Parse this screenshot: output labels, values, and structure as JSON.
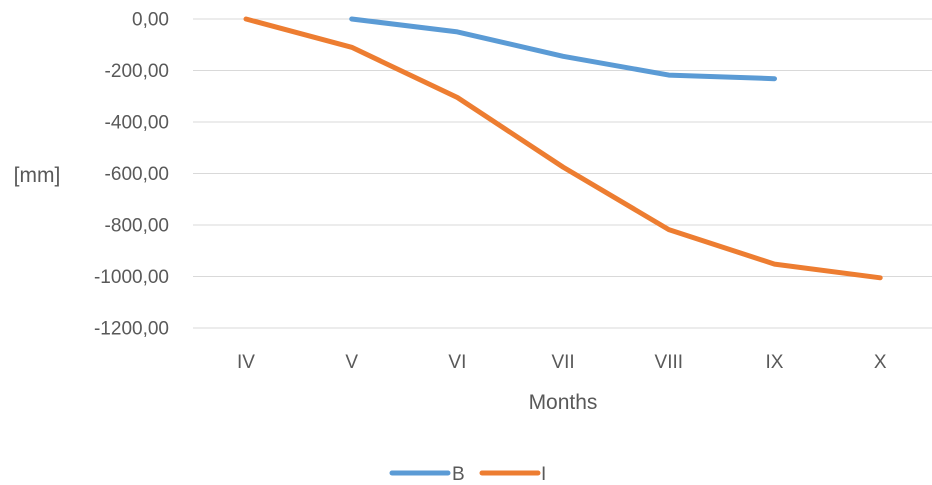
{
  "chart_data": {
    "type": "line",
    "categories": [
      "IV",
      "V",
      "VI",
      "VII",
      "VIII",
      "IX",
      "X"
    ],
    "y_tick_labels": [
      "0,00",
      "-200,00",
      "-400,00",
      "-600,00",
      "-800,00",
      "-1000,00",
      "-1200,00"
    ],
    "y_ticks": [
      0,
      -200,
      -400,
      -600,
      -800,
      -1000,
      -1200
    ],
    "ylim": [
      -1200,
      0
    ],
    "xlabel": "Months",
    "ylabel": "[mm]",
    "grid": true,
    "legend_position": "bottom",
    "series": [
      {
        "name": "B",
        "color": "#5b9bd5",
        "values": [
          null,
          0,
          -50,
          -145,
          -218,
          -232,
          null
        ]
      },
      {
        "name": "I",
        "color": "#ed7d31",
        "values": [
          0,
          -110,
          -305,
          -575,
          -818,
          -952,
          -1005
        ]
      }
    ]
  }
}
